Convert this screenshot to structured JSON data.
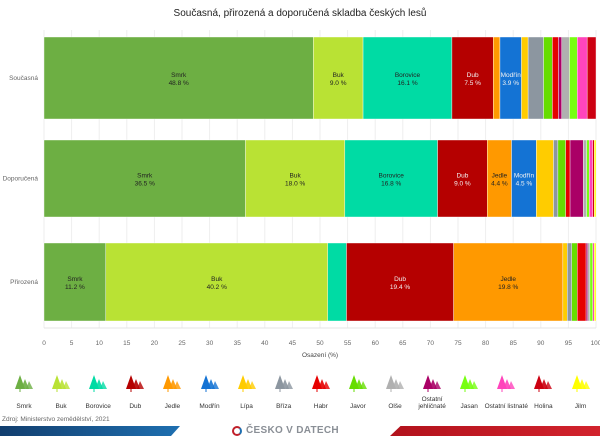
{
  "chart_data": {
    "type": "bar",
    "orientation": "horizontal-stacked",
    "title": "Současná, přirozená a doporučená skladba českých lesů",
    "xlabel": "Osazení (%)",
    "ylabel": "",
    "xlim": [
      0,
      100
    ],
    "xticks": [
      "0",
      "5",
      "10",
      "15",
      "20",
      "25",
      "30",
      "35",
      "40",
      "45",
      "50",
      "55",
      "60",
      "65",
      "70",
      "75",
      "80",
      "85",
      "90",
      "95",
      "100"
    ],
    "grid": true,
    "legend_position": "bottom",
    "categories": [
      "Současná",
      "Doporučená",
      "Přirozená"
    ],
    "species": [
      {
        "name": "Smrk",
        "color": "#6daf43"
      },
      {
        "name": "Buk",
        "color": "#b9e234"
      },
      {
        "name": "Borovice",
        "color": "#00dba4"
      },
      {
        "name": "Dub",
        "color": "#b50000"
      },
      {
        "name": "Jedle",
        "color": "#ff9900"
      },
      {
        "name": "Modřín",
        "color": "#1473d4"
      },
      {
        "name": "Lípa",
        "color": "#ffcc00"
      },
      {
        "name": "Bříza",
        "color": "#8c96a0"
      },
      {
        "name": "Habr",
        "color": "#e60000"
      },
      {
        "name": "Javor",
        "color": "#66dd00"
      },
      {
        "name": "Olše",
        "color": "#b0b0b0"
      },
      {
        "name": "Ostatní jehličnaté",
        "color": "#aa0066"
      },
      {
        "name": "Jasan",
        "color": "#77ff11"
      },
      {
        "name": "Ostatní listnaté",
        "color": "#ff44bb"
      },
      {
        "name": "Holina",
        "color": "#cc0011"
      },
      {
        "name": "Jilm",
        "color": "#ffff00"
      }
    ],
    "rows": [
      {
        "category": "Současná",
        "segments": [
          {
            "species": "Smrk",
            "value": 48.8,
            "label": "48.8 %"
          },
          {
            "species": "Buk",
            "value": 9.0,
            "label": "9.0 %"
          },
          {
            "species": "Borovice",
            "value": 16.1,
            "label": "16.1 %"
          },
          {
            "species": "Dub",
            "value": 7.5,
            "label": "7.5 %"
          },
          {
            "species": "Jedle",
            "value": 1.2
          },
          {
            "species": "Modřín",
            "value": 3.9,
            "label": "3.9 %"
          },
          {
            "species": "Lípa",
            "value": 1.2
          },
          {
            "species": "Bříza",
            "value": 2.8
          },
          {
            "species": "Javor",
            "value": 1.6
          },
          {
            "species": "Habr",
            "value": 1.1
          },
          {
            "species": "Ostatní jehličnaté",
            "value": 0.6
          },
          {
            "species": "Olše",
            "value": 1.4
          },
          {
            "species": "Jasan",
            "value": 1.4
          },
          {
            "species": "Ostatní listnaté",
            "value": 1.8
          },
          {
            "species": "Holina",
            "value": 1.6
          }
        ]
      },
      {
        "category": "Doporučená",
        "segments": [
          {
            "species": "Smrk",
            "value": 36.5,
            "label": "36.5 %"
          },
          {
            "species": "Buk",
            "value": 18.0,
            "label": "18.0 %"
          },
          {
            "species": "Borovice",
            "value": 16.8,
            "label": "16.8 %"
          },
          {
            "species": "Dub",
            "value": 9.0,
            "label": "9.0 %"
          },
          {
            "species": "Jedle",
            "value": 4.4,
            "label": "4.4 %"
          },
          {
            "species": "Modřín",
            "value": 4.5,
            "label": "4.5 %"
          },
          {
            "species": "Lípa",
            "value": 3.1
          },
          {
            "species": "Bříza",
            "value": 0.8
          },
          {
            "species": "Javor",
            "value": 1.4
          },
          {
            "species": "Habr",
            "value": 0.8
          },
          {
            "species": "Ostatní jehličnaté",
            "value": 2.4
          },
          {
            "species": "Olše",
            "value": 0.6
          },
          {
            "species": "Jasan",
            "value": 0.5
          },
          {
            "species": "Ostatní listnaté",
            "value": 0.6
          },
          {
            "species": "Holina",
            "value": 0.3
          },
          {
            "species": "Jilm",
            "value": 0.3
          }
        ]
      },
      {
        "category": "Přirozená",
        "segments": [
          {
            "species": "Smrk",
            "value": 11.2,
            "label": "11.2 %"
          },
          {
            "species": "Buk",
            "value": 40.2,
            "label": "40.2 %"
          },
          {
            "species": "Borovice",
            "value": 3.4
          },
          {
            "species": "Dub",
            "value": 19.4,
            "label": "19.4 %"
          },
          {
            "species": "Jedle",
            "value": 19.8,
            "label": "19.8 %"
          },
          {
            "species": "Lípa",
            "value": 0.8
          },
          {
            "species": "Bříza",
            "value": 0.8
          },
          {
            "species": "Javor",
            "value": 1.0
          },
          {
            "species": "Habr",
            "value": 1.6
          },
          {
            "species": "Ostatní jehličnaté",
            "value": 0.3
          },
          {
            "species": "Olše",
            "value": 0.4
          },
          {
            "species": "Jasan",
            "value": 0.5
          },
          {
            "species": "Ostatní listnaté",
            "value": 0.3
          },
          {
            "species": "Jilm",
            "value": 0.3
          }
        ]
      }
    ],
    "light_label_species": [
      "Dub",
      "Modřín"
    ]
  },
  "source": "Zdroj: Ministerstvo zemědělství, 2021",
  "brand": "ČESKO V DATECH"
}
